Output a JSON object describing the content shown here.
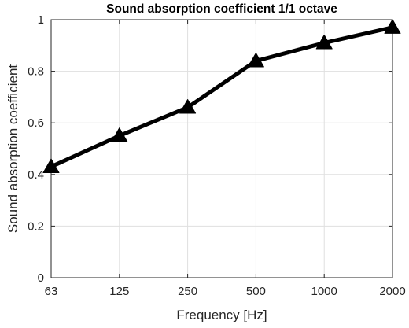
{
  "chart_data": {
    "type": "line",
    "title": "Sound absorption coefficient 1/1 octave",
    "xlabel": "Frequency [Hz]",
    "ylabel": "Sound absorption coefficient",
    "categories": [
      "63",
      "125",
      "250",
      "500",
      "1000",
      "2000"
    ],
    "x_scale": "log",
    "ylim": [
      0,
      1
    ],
    "y_ticks": [
      0,
      0.2,
      0.4,
      0.6,
      0.8,
      1
    ],
    "y_tick_labels": [
      "0",
      "0.2",
      "0.4",
      "0.6",
      "0.8",
      "1"
    ],
    "grid": true,
    "marker": "triangle",
    "series": [
      {
        "values": [
          0.43,
          0.55,
          0.66,
          0.84,
          0.91,
          0.97
        ],
        "color": "#000000"
      }
    ]
  }
}
